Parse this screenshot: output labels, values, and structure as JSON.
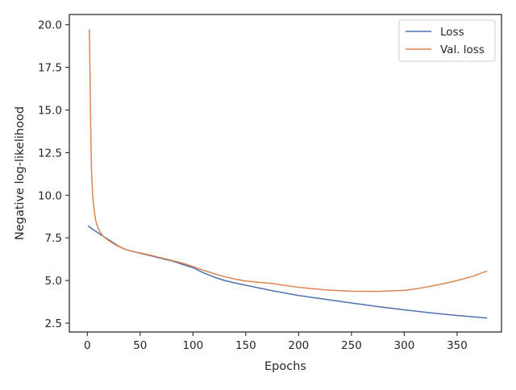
{
  "chart_data": {
    "type": "line",
    "title": "",
    "xlabel": "Epochs",
    "ylabel": "Negative log-likelihood",
    "xlim": [
      -17,
      392
    ],
    "ylim": [
      1.98,
      20.6
    ],
    "x_ticks": [
      0,
      50,
      100,
      150,
      200,
      250,
      300,
      350
    ],
    "y_ticks": [
      2.5,
      5.0,
      7.5,
      10.0,
      12.5,
      15.0,
      17.5,
      20.0
    ],
    "grid": false,
    "legend_position": "top-right",
    "series": [
      {
        "name": "Loss",
        "color": "#4c72b0",
        "x": [
          1,
          5,
          10,
          15,
          20,
          25,
          30,
          35,
          40,
          50,
          60,
          70,
          80,
          90,
          100,
          110,
          120,
          130,
          140,
          150,
          175,
          200,
          225,
          250,
          275,
          300,
          325,
          350,
          378
        ],
        "y": [
          8.2,
          8.0,
          7.8,
          7.6,
          7.4,
          7.2,
          7.0,
          6.85,
          6.75,
          6.6,
          6.45,
          6.3,
          6.15,
          5.95,
          5.75,
          5.45,
          5.2,
          5.0,
          4.85,
          4.72,
          4.4,
          4.12,
          3.9,
          3.68,
          3.47,
          3.28,
          3.1,
          2.95,
          2.8
        ]
      },
      {
        "name": "Val. loss",
        "color": "#dd8452",
        "x": [
          2,
          2.5,
          3,
          3.5,
          4,
          5,
          6,
          7,
          8,
          10,
          12,
          15,
          20,
          25,
          30,
          35,
          40,
          50,
          60,
          70,
          80,
          90,
          100,
          110,
          120,
          130,
          140,
          150,
          175,
          200,
          225,
          250,
          275,
          300,
          310,
          325,
          340,
          350,
          365,
          378
        ],
        "y": [
          19.7,
          17.5,
          15.0,
          13.0,
          11.4,
          10.1,
          9.4,
          8.9,
          8.5,
          8.1,
          7.85,
          7.6,
          7.35,
          7.15,
          6.98,
          6.85,
          6.75,
          6.62,
          6.48,
          6.33,
          6.18,
          6.02,
          5.82,
          5.6,
          5.4,
          5.22,
          5.08,
          4.97,
          4.82,
          4.6,
          4.45,
          4.37,
          4.36,
          4.42,
          4.5,
          4.66,
          4.85,
          5.0,
          5.25,
          5.55
        ]
      }
    ]
  }
}
